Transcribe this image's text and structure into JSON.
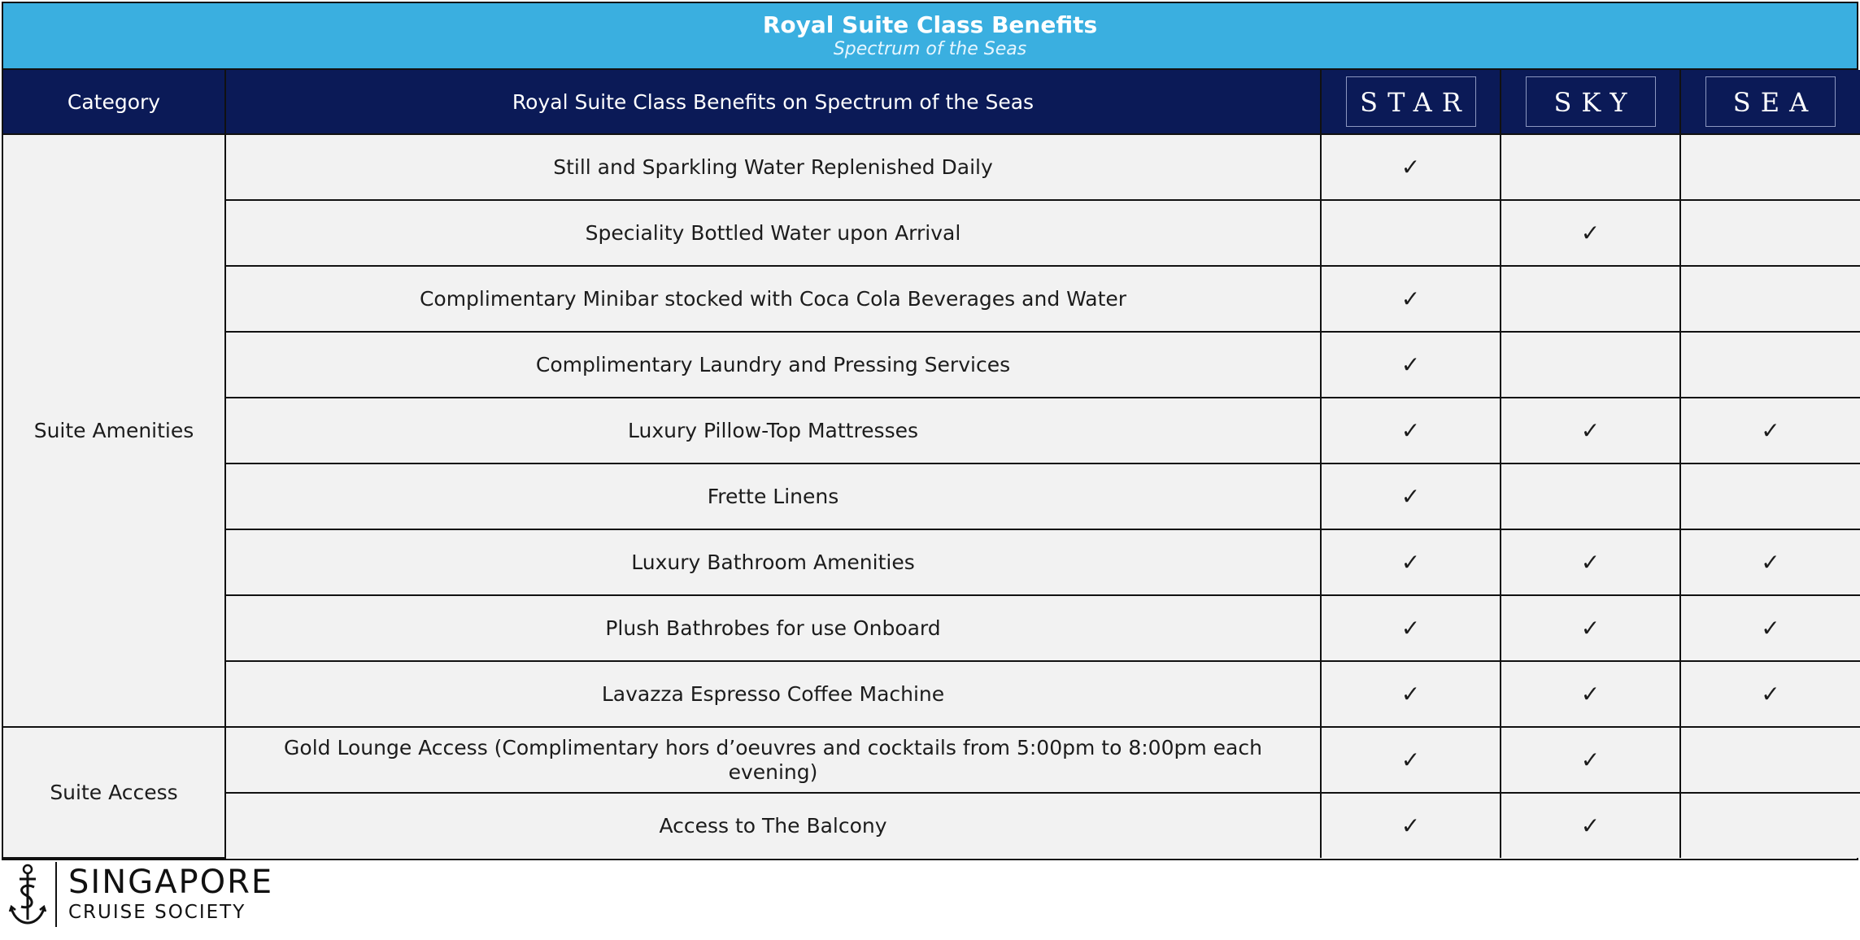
{
  "header": {
    "title": "Royal Suite Class Benefits",
    "subtitle": "Spectrum of the Seas"
  },
  "columns": {
    "category": "Category",
    "benefit": "Royal Suite Class Benefits on Spectrum of the Seas",
    "tiers": [
      "STAR",
      "SKY",
      "SEA"
    ]
  },
  "check_mark": "✓",
  "categories": [
    "Suite Amenities",
    "Suite Access"
  ],
  "rows": [
    {
      "category": "Suite Amenities",
      "benefit": "Still and Sparkling Water Replenished Daily",
      "star": "✓",
      "sky": "",
      "sea": ""
    },
    {
      "category": "Suite Amenities",
      "benefit": "Speciality Bottled Water upon Arrival",
      "star": "",
      "sky": "✓",
      "sea": ""
    },
    {
      "category": "Suite Amenities",
      "benefit": "Complimentary Minibar stocked with Coca Cola Beverages and Water",
      "star": "✓",
      "sky": "",
      "sea": ""
    },
    {
      "category": "Suite Amenities",
      "benefit": "Complimentary Laundry and Pressing Services",
      "star": "✓",
      "sky": "",
      "sea": ""
    },
    {
      "category": "Suite Amenities",
      "benefit": "Luxury Pillow-Top Mattresses",
      "star": "✓",
      "sky": "✓",
      "sea": "✓"
    },
    {
      "category": "Suite Amenities",
      "benefit": "Frette Linens",
      "star": "✓",
      "sky": "",
      "sea": ""
    },
    {
      "category": "Suite Amenities",
      "benefit": "Luxury Bathroom Amenities",
      "star": "✓",
      "sky": "✓",
      "sea": "✓"
    },
    {
      "category": "Suite Amenities",
      "benefit": "Plush Bathrobes for use Onboard",
      "star": "✓",
      "sky": "✓",
      "sea": "✓"
    },
    {
      "category": "Suite Amenities",
      "benefit": "Lavazza Espresso Coffee Machine",
      "star": "✓",
      "sky": "✓",
      "sea": "✓"
    },
    {
      "category": "Suite Access",
      "benefit": "Gold Lounge Access (Complimentary hors d’oeuvres and cocktails from 5:00pm to 8:00pm each evening)",
      "star": "✓",
      "sky": "✓",
      "sea": ""
    },
    {
      "category": "Suite Access",
      "benefit": "Access to The Balcony",
      "star": "✓",
      "sky": "✓",
      "sea": ""
    }
  ],
  "footer": {
    "logo_line1": "SINGAPORE",
    "logo_line2": "CRUISE SOCIETY"
  },
  "colors": {
    "title_band": "#3aafe0",
    "header_band": "#0b1a57",
    "cell_bg": "#f2f2f2"
  }
}
